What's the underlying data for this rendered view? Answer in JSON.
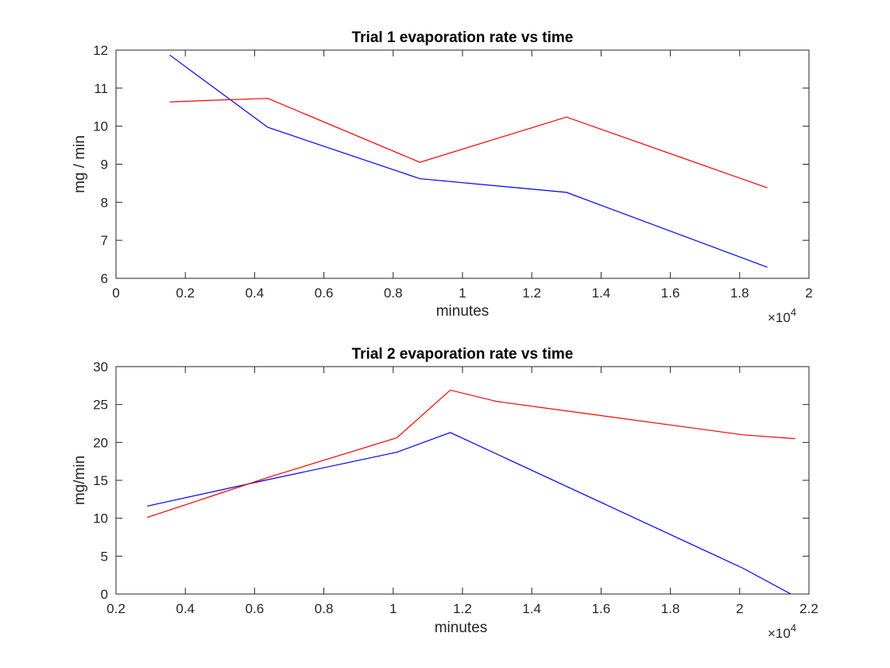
{
  "chart_data": [
    {
      "type": "line",
      "title": "Trial 1 evaporation rate vs time",
      "xlabel": "minutes",
      "ylabel": "mg / min",
      "xlim": [
        0,
        20000
      ],
      "ylim": [
        6,
        12
      ],
      "x_ticks": [
        0,
        2000,
        4000,
        6000,
        8000,
        10000,
        12000,
        14000,
        16000,
        18000,
        20000
      ],
      "x_tick_labels": [
        "0",
        "0.2",
        "0.4",
        "0.6",
        "0.8",
        "1",
        "1.2",
        "1.4",
        "1.6",
        "1.8",
        "2"
      ],
      "x_exponent": "×10",
      "x_exponent_power": "4",
      "y_ticks": [
        6,
        7,
        8,
        9,
        10,
        11,
        12
      ],
      "y_tick_labels": [
        "6",
        "7",
        "8",
        "9",
        "10",
        "11",
        "12"
      ],
      "grid": false,
      "series": [
        {
          "color": "#0000ff",
          "x": [
            1550,
            4380,
            8770,
            13000,
            18800
          ],
          "y": [
            11.87,
            9.97,
            8.62,
            8.26,
            6.29
          ]
        },
        {
          "color": "#ff0000",
          "x": [
            1550,
            4380,
            8770,
            13000,
            18800
          ],
          "y": [
            10.64,
            10.73,
            9.05,
            10.24,
            8.38
          ]
        }
      ]
    },
    {
      "type": "line",
      "title": "Trial 2 evaporation rate vs time",
      "xlabel": "minutes",
      "ylabel": "mg/min",
      "xlim": [
        2000,
        22000
      ],
      "ylim": [
        0,
        30
      ],
      "x_ticks": [
        2000,
        4000,
        6000,
        8000,
        10000,
        12000,
        14000,
        16000,
        18000,
        20000,
        22000
      ],
      "x_tick_labels": [
        "0.2",
        "0.4",
        "0.6",
        "0.8",
        "1",
        "1.2",
        "1.4",
        "1.6",
        "1.8",
        "2",
        "2.2"
      ],
      "x_exponent": "×10",
      "x_exponent_power": "4",
      "y_ticks": [
        0,
        5,
        10,
        15,
        20,
        25,
        30
      ],
      "y_tick_labels": [
        "0",
        "5",
        "10",
        "15",
        "20",
        "25",
        "30"
      ],
      "grid": false,
      "series": [
        {
          "color": "#0000ff",
          "x": [
            2900,
            6400,
            10100,
            11650,
            20100,
            21600
          ],
          "y": [
            11.6,
            15.1,
            18.7,
            21.3,
            3.4,
            -0.3
          ]
        },
        {
          "color": "#ff0000",
          "x": [
            2900,
            6400,
            10100,
            11650,
            13000,
            20100,
            21600
          ],
          "y": [
            10.1,
            15.4,
            20.6,
            26.9,
            25.4,
            21.0,
            20.5
          ]
        }
      ]
    }
  ]
}
